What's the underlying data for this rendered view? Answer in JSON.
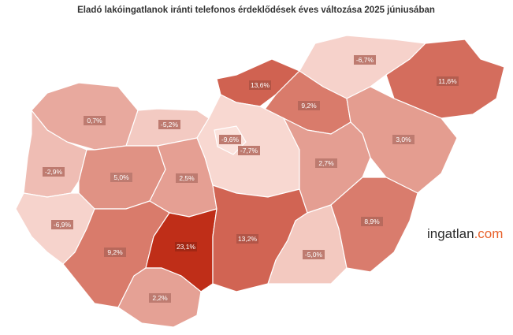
{
  "chart_data": {
    "type": "choropleth",
    "title": "Eladó lakóingatlanok iránti telefonos érdeklődések éves változása 2025 júniusában",
    "values": [
      0.7,
      -5.2,
      13.6,
      -6.7,
      11.6,
      9.2,
      3.0,
      -7.7,
      -9.6,
      2.7,
      -2.9,
      5.0,
      2.5,
      -6.9,
      9.2,
      23.1,
      13.2,
      -5.0,
      8.9,
      2.2
    ],
    "value_labels": [
      "0,7%",
      "-5,2%",
      "13,6%",
      "-6,7%",
      "11,6%",
      "9,2%",
      "3,0%",
      "-7,7%",
      "-9,6%",
      "2,7%",
      "-2,9%",
      "5,0%",
      "2,5%",
      "-6,9%",
      "9,2%",
      "23,1%",
      "13,2%",
      "-5,0%",
      "8,9%",
      "2,2%"
    ],
    "color_scale": [
      "#fbe2dc",
      "#bf2e18"
    ]
  },
  "brand": {
    "name": "ingatlan",
    "suffix": ".com"
  }
}
